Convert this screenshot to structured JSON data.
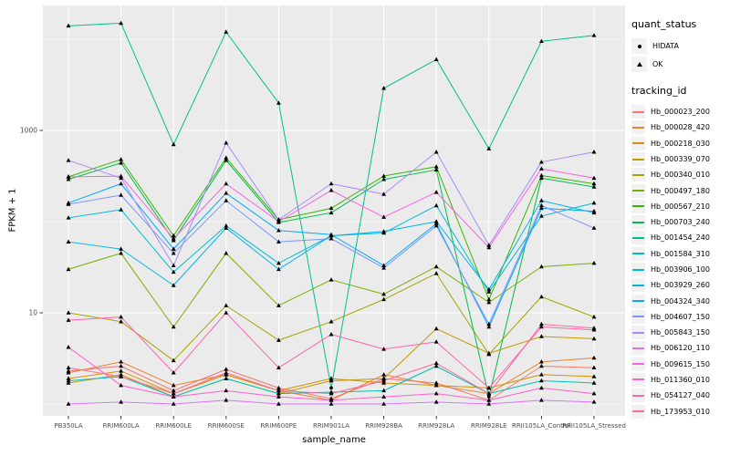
{
  "chart": {
    "ylabel": "FPKM + 1",
    "xlabel": "sample_name",
    "legend_quant_title": "quant_status",
    "legend_quant": [
      {
        "label": "HIDATA",
        "marker": "circle"
      },
      {
        "label": "OK",
        "marker": "triangle"
      }
    ],
    "legend_tracking_title": "tracking_id"
  },
  "colors": {
    "panel_bg": "#EBEBEB",
    "grid": "#FFFFFF",
    "marker": "#000000",
    "axis_text": "#4D4D4D",
    "tick": "#333333",
    "legend_key_bg": "#F2F2F2"
  },
  "chart_data": {
    "type": "line",
    "title": "",
    "xlabel": "sample_name",
    "ylabel": "FPKM + 1",
    "y_scale": "log10",
    "yticks": [
      10,
      1000
    ],
    "ytick_labels": [
      "10",
      "1000"
    ],
    "minor_gridlines_at": [
      1,
      100,
      10000
    ],
    "ylim": [
      0.9,
      22000
    ],
    "grid": true,
    "legend_position": "right",
    "marker_legend": {
      "title": "quant_status",
      "entries": [
        "HIDATA",
        "OK"
      ]
    },
    "color_legend_title": "tracking_id",
    "categories": [
      "PB350LA",
      "RRIM600LA",
      "RRIM600LE",
      "RRIM600SE",
      "RRIM600PE",
      "RRIM901LA",
      "RRIM928BA",
      "RRIM928LA",
      "RRIM928LE",
      "RRII105LA_Control",
      "RRII105LA_Stressed"
    ],
    "series": [
      {
        "name": "Hb_000023_200",
        "color": "#F8766D",
        "values": [
          2.3,
          2.6,
          1.4,
          2.4,
          1.5,
          1.15,
          1.9,
          1.7,
          1.1,
          2.6,
          2.5
        ]
      },
      {
        "name": "Hb_000028_420",
        "color": "#EA8331",
        "values": [
          2.2,
          2.9,
          1.6,
          2.1,
          1.4,
          1.1,
          2.1,
          1.6,
          1.3,
          2.9,
          3.2
        ]
      },
      {
        "name": "Hb_000218_030",
        "color": "#D89000",
        "values": [
          1.9,
          2.3,
          1.3,
          2.1,
          1.4,
          1.9,
          1.7,
          1.6,
          1.5,
          2.1,
          2.0
        ]
      },
      {
        "name": "Hb_000339_070",
        "color": "#C09B00",
        "values": [
          1.7,
          2.1,
          1.2,
          1.9,
          1.3,
          1.8,
          1.9,
          6.7,
          3.6,
          5.5,
          5.2
        ]
      },
      {
        "name": "Hb_000340_010",
        "color": "#A3A500",
        "values": [
          10,
          8,
          3,
          12,
          5,
          8,
          14,
          27,
          3.5,
          15,
          9
        ]
      },
      {
        "name": "Hb_000497_180",
        "color": "#7CAE00",
        "values": [
          30,
          45,
          7,
          45,
          12,
          23,
          16,
          32,
          13,
          32,
          35
        ]
      },
      {
        "name": "Hb_000567_210",
        "color": "#39B600",
        "values": [
          310,
          480,
          70,
          500,
          105,
          140,
          316,
          400,
          14,
          320,
          260
        ]
      },
      {
        "name": "Hb_000703_240",
        "color": "#00BB4E",
        "values": [
          290,
          440,
          62,
          470,
          98,
          125,
          290,
          370,
          1.2,
          300,
          240
        ]
      },
      {
        "name": "Hb_001454_240",
        "color": "#00C08B",
        "values": [
          14000,
          15000,
          700,
          12000,
          2000,
          1.5,
          2900,
          6000,
          630,
          9500,
          11000
        ]
      },
      {
        "name": "Hb_001584_310",
        "color": "#00C0B8",
        "values": [
          1.8,
          2.0,
          1.2,
          1.9,
          1.3,
          1.35,
          1.4,
          2.6,
          1.3,
          1.8,
          1.7
        ]
      },
      {
        "name": "Hb_003906_100",
        "color": "#00BDD2",
        "values": [
          110,
          135,
          28,
          90,
          35,
          70,
          75,
          150,
          17,
          115,
          160
        ]
      },
      {
        "name": "Hb_003929_260",
        "color": "#00B5EC",
        "values": [
          60,
          50,
          20,
          85,
          30,
          70,
          78,
          100,
          18,
          170,
          125
        ]
      },
      {
        "name": "Hb_004324_340",
        "color": "#00A9FF",
        "values": [
          160,
          260,
          50,
          205,
          80,
          72,
          33,
          95,
          7,
          140,
          130
        ]
      },
      {
        "name": "Hb_004607_150",
        "color": "#7997FF",
        "values": [
          155,
          195,
          45,
          170,
          60,
          65,
          31,
          90,
          7.5,
          150,
          85
        ]
      },
      {
        "name": "Hb_005843_150",
        "color": "#AC88FF",
        "values": [
          470,
          300,
          33,
          730,
          105,
          260,
          200,
          580,
          55,
          450,
          580
        ]
      },
      {
        "name": "Hb_006120_110",
        "color": "#DC71FA",
        "values": [
          1.0,
          1.05,
          1.0,
          1.1,
          1.0,
          1.0,
          1.0,
          1.05,
          1.0,
          1.1,
          1.05
        ]
      },
      {
        "name": "Hb_009615_150",
        "color": "#F763E0",
        "values": [
          310,
          315,
          65,
          260,
          100,
          220,
          112,
          210,
          52,
          380,
          300
        ]
      },
      {
        "name": "Hb_011360_010",
        "color": "#FF61C9",
        "values": [
          4.2,
          1.6,
          1.2,
          1.4,
          1.2,
          1.1,
          1.2,
          1.3,
          1.1,
          1.5,
          1.3
        ]
      },
      {
        "name": "Hb_054127_040",
        "color": "#FF64B0",
        "values": [
          8.3,
          9,
          2.2,
          10,
          2.5,
          5.8,
          4,
          4.8,
          1.5,
          7,
          6.5
        ]
      },
      {
        "name": "Hb_173953_010",
        "color": "#FF6A98",
        "values": [
          2.5,
          2.0,
          1.3,
          2.2,
          1.4,
          1.3,
          1.8,
          2.8,
          1.3,
          7.5,
          6.8
        ]
      }
    ],
    "hidata_points": [
      {
        "series": "Hb_001454_240",
        "sample": "RRIM901LA"
      },
      {
        "series": "Hb_000703_240",
        "sample": "RRIM928LE"
      }
    ]
  }
}
